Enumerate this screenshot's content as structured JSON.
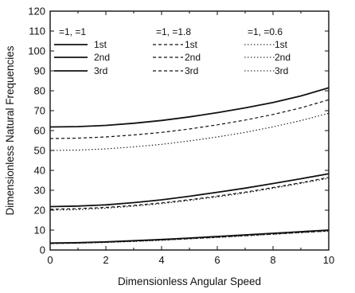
{
  "chart_data": {
    "type": "line",
    "xlabel": "Dimensionless Angular Speed",
    "ylabel": "Dimensionless Natural Frequencies",
    "xlim": [
      0,
      10
    ],
    "ylim": [
      0,
      120
    ],
    "xticks": [
      "0",
      "2",
      "4",
      "6",
      "8",
      "10"
    ],
    "yticks": [
      "0",
      "10",
      "20",
      "30",
      "40",
      "50",
      "60",
      "70",
      "80",
      "90",
      "100",
      "110",
      "120"
    ],
    "grid": false,
    "legend_position": "top",
    "legend": {
      "groups": [
        {
          "header": "=1, =1",
          "entries": [
            "1st",
            "2nd",
            "3rd"
          ]
        },
        {
          "header": "=1, =1.8",
          "entries": [
            "1st",
            "2nd",
            "3rd"
          ]
        },
        {
          "header": "=1, =0.6",
          "entries": [
            "1st",
            "2nd",
            "3rd"
          ]
        }
      ]
    },
    "x": [
      0,
      1,
      2,
      3,
      4,
      5,
      6,
      7,
      8,
      9,
      10
    ],
    "series": [
      {
        "group": 0,
        "mode": 1,
        "style": "solid",
        "values": [
          61.8,
          62.0,
          62.6,
          63.7,
          65.1,
          66.9,
          69.0,
          71.4,
          74.1,
          77.4,
          81.5
        ]
      },
      {
        "group": 0,
        "mode": 2,
        "style": "solid",
        "values": [
          21.8,
          22.1,
          22.7,
          23.8,
          25.2,
          27.0,
          29.0,
          31.1,
          33.4,
          35.8,
          38.3
        ]
      },
      {
        "group": 0,
        "mode": 3,
        "style": "solid",
        "values": [
          3.5,
          3.7,
          4.1,
          4.7,
          5.3,
          6.0,
          6.8,
          7.6,
          8.4,
          9.2,
          10.0
        ]
      },
      {
        "group": 1,
        "mode": 1,
        "style": "dashed",
        "values": [
          56.0,
          56.2,
          56.8,
          57.8,
          59.1,
          60.8,
          62.9,
          65.3,
          68.1,
          71.4,
          75.5
        ]
      },
      {
        "group": 1,
        "mode": 2,
        "style": "dashed",
        "values": [
          20.5,
          20.8,
          21.4,
          22.4,
          23.7,
          25.3,
          27.1,
          29.1,
          31.4,
          33.8,
          36.5
        ]
      },
      {
        "group": 1,
        "mode": 3,
        "style": "dashed",
        "values": [
          3.3,
          3.5,
          3.9,
          4.4,
          5.0,
          5.7,
          6.4,
          7.2,
          8.0,
          8.8,
          9.6
        ]
      },
      {
        "group": 2,
        "mode": 1,
        "style": "dotted",
        "values": [
          50.0,
          50.2,
          50.8,
          51.8,
          53.1,
          54.8,
          56.8,
          59.1,
          61.9,
          65.0,
          68.7
        ]
      },
      {
        "group": 2,
        "mode": 2,
        "style": "dotted",
        "values": [
          20.0,
          20.3,
          21.0,
          22.0,
          23.3,
          24.9,
          26.7,
          28.7,
          31.0,
          33.5,
          36.0
        ]
      },
      {
        "group": 2,
        "mode": 3,
        "style": "dotted",
        "values": [
          3.2,
          3.4,
          3.8,
          4.3,
          4.9,
          5.6,
          6.3,
          7.1,
          7.9,
          8.7,
          9.5
        ]
      }
    ],
    "colors": {
      "line": "#111111",
      "background": "#ffffff"
    }
  }
}
